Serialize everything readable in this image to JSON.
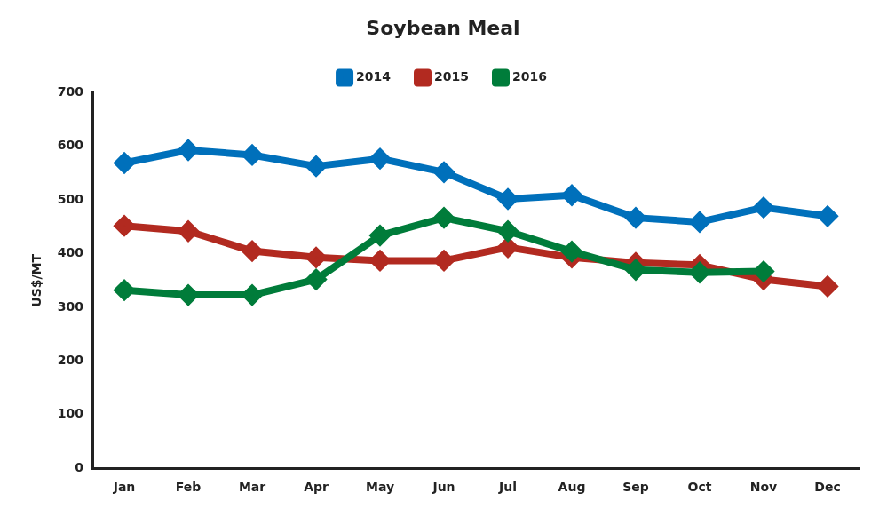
{
  "chart_data": {
    "type": "line",
    "title": "Soybean Meal",
    "ylabel": "US$/MT",
    "categories": [
      "Jan",
      "Feb",
      "Mar",
      "Apr",
      "May",
      "Jun",
      "Jul",
      "Aug",
      "Sep",
      "Oct",
      "Nov",
      "Dec"
    ],
    "series": [
      {
        "name": "2014",
        "color": "#0070bb",
        "values": [
          569,
          593,
          584,
          563,
          577,
          552,
          502,
          509,
          467,
          459,
          486,
          470
        ]
      },
      {
        "name": "2015",
        "color": "#b22a20",
        "values": [
          452,
          442,
          405,
          393,
          387,
          387,
          412,
          393,
          383,
          379,
          352,
          339
        ]
      },
      {
        "name": "2016",
        "color": "#007c3a",
        "values": [
          332,
          323,
          323,
          352,
          434,
          467,
          442,
          404,
          370,
          365,
          367,
          null
        ]
      }
    ],
    "ylim": [
      0,
      700
    ],
    "yticks": [
      0,
      100,
      200,
      300,
      400,
      500,
      600,
      700
    ],
    "grid": false,
    "legend": "top",
    "marker": "diamond",
    "line_style": "solid"
  }
}
